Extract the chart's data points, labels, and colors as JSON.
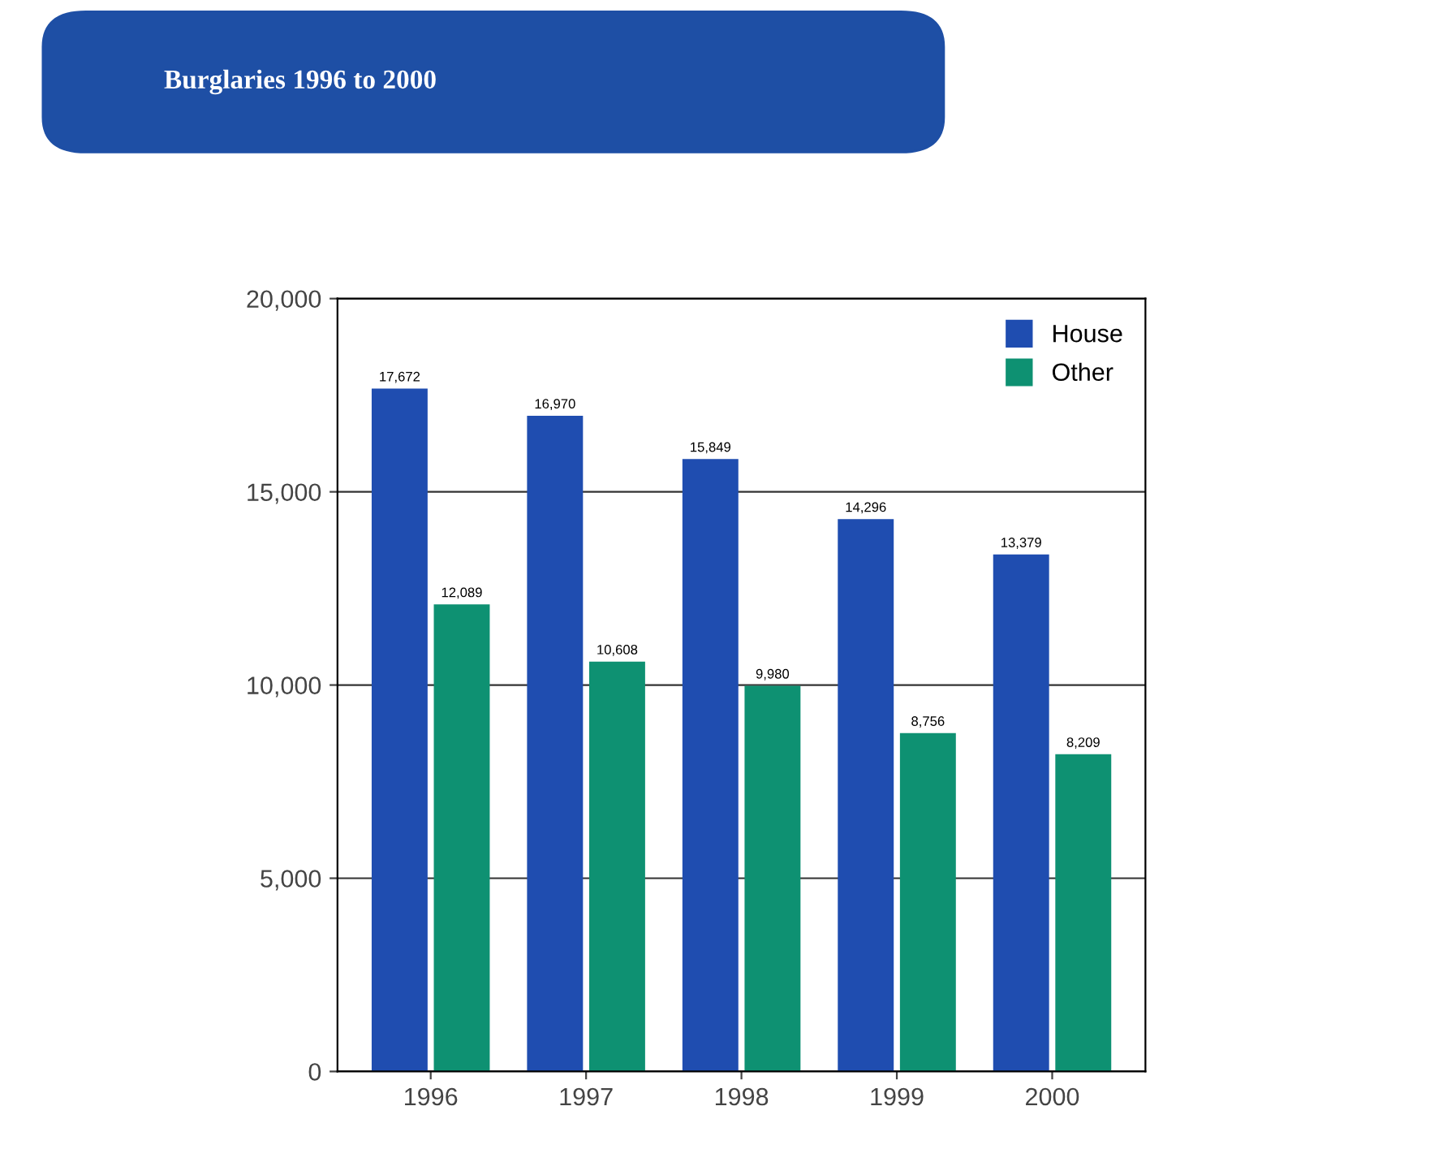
{
  "chart_data": {
    "type": "bar",
    "title": "Burglaries 1996 to 2000",
    "categories": [
      "1996",
      "1997",
      "1998",
      "1999",
      "2000"
    ],
    "series": [
      {
        "name": "House",
        "color": "#1f4db0",
        "values": [
          17672,
          16970,
          15849,
          14296,
          13379
        ],
        "value_labels": [
          "17,672",
          "16,970",
          "15,849",
          "14,296",
          "13,379"
        ]
      },
      {
        "name": "Other",
        "color": "#0e9172",
        "values": [
          12089,
          10608,
          9980,
          8756,
          8209
        ],
        "value_labels": [
          "12,089",
          "10,608",
          "9,980",
          "8,756",
          "8,209"
        ]
      }
    ],
    "ylim": [
      0,
      20000
    ],
    "yticks": [
      {
        "value": 0,
        "label": "0"
      },
      {
        "value": 5000,
        "label": "5,000"
      },
      {
        "value": 10000,
        "label": "10,000"
      },
      {
        "value": 15000,
        "label": "15,000"
      },
      {
        "value": 20000,
        "label": "20,000"
      }
    ],
    "grid": "y",
    "legend": "top right"
  }
}
